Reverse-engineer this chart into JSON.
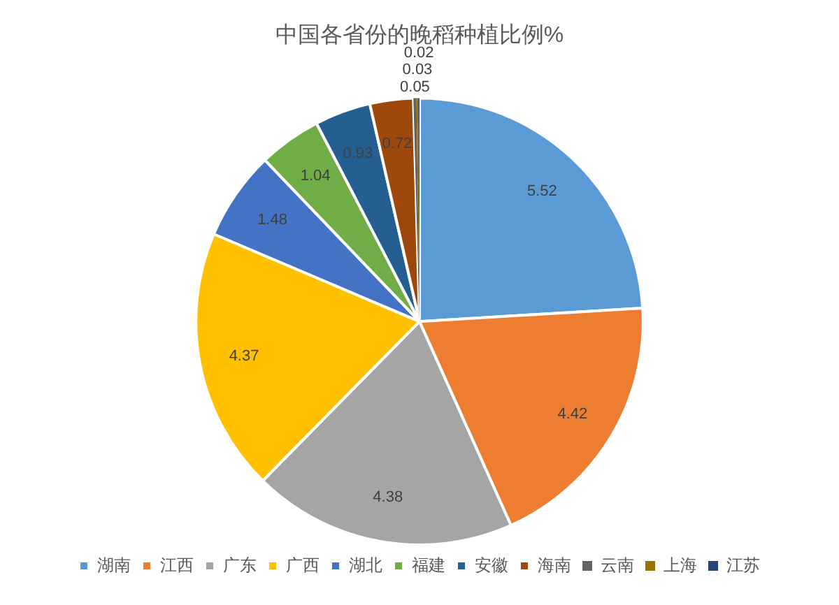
{
  "chart_data": {
    "type": "pie",
    "title": "中国各省份的晚稻种植比例%",
    "categories": [
      "湖南",
      "江西",
      "广东",
      "广西",
      "湖北",
      "福建",
      "安徽",
      "海南",
      "云南",
      "上海",
      "江苏"
    ],
    "values": [
      5.52,
      4.42,
      4.38,
      4.37,
      1.48,
      1.04,
      0.93,
      0.72,
      0.05,
      0.03,
      0.02
    ],
    "colors": [
      "#5b9bd5",
      "#ed7d31",
      "#a5a5a5",
      "#ffc000",
      "#4472c4",
      "#70ad47",
      "#255e91",
      "#9e480e",
      "#636363",
      "#997300",
      "#264478"
    ],
    "data_labels": true,
    "legend": "bottom"
  }
}
